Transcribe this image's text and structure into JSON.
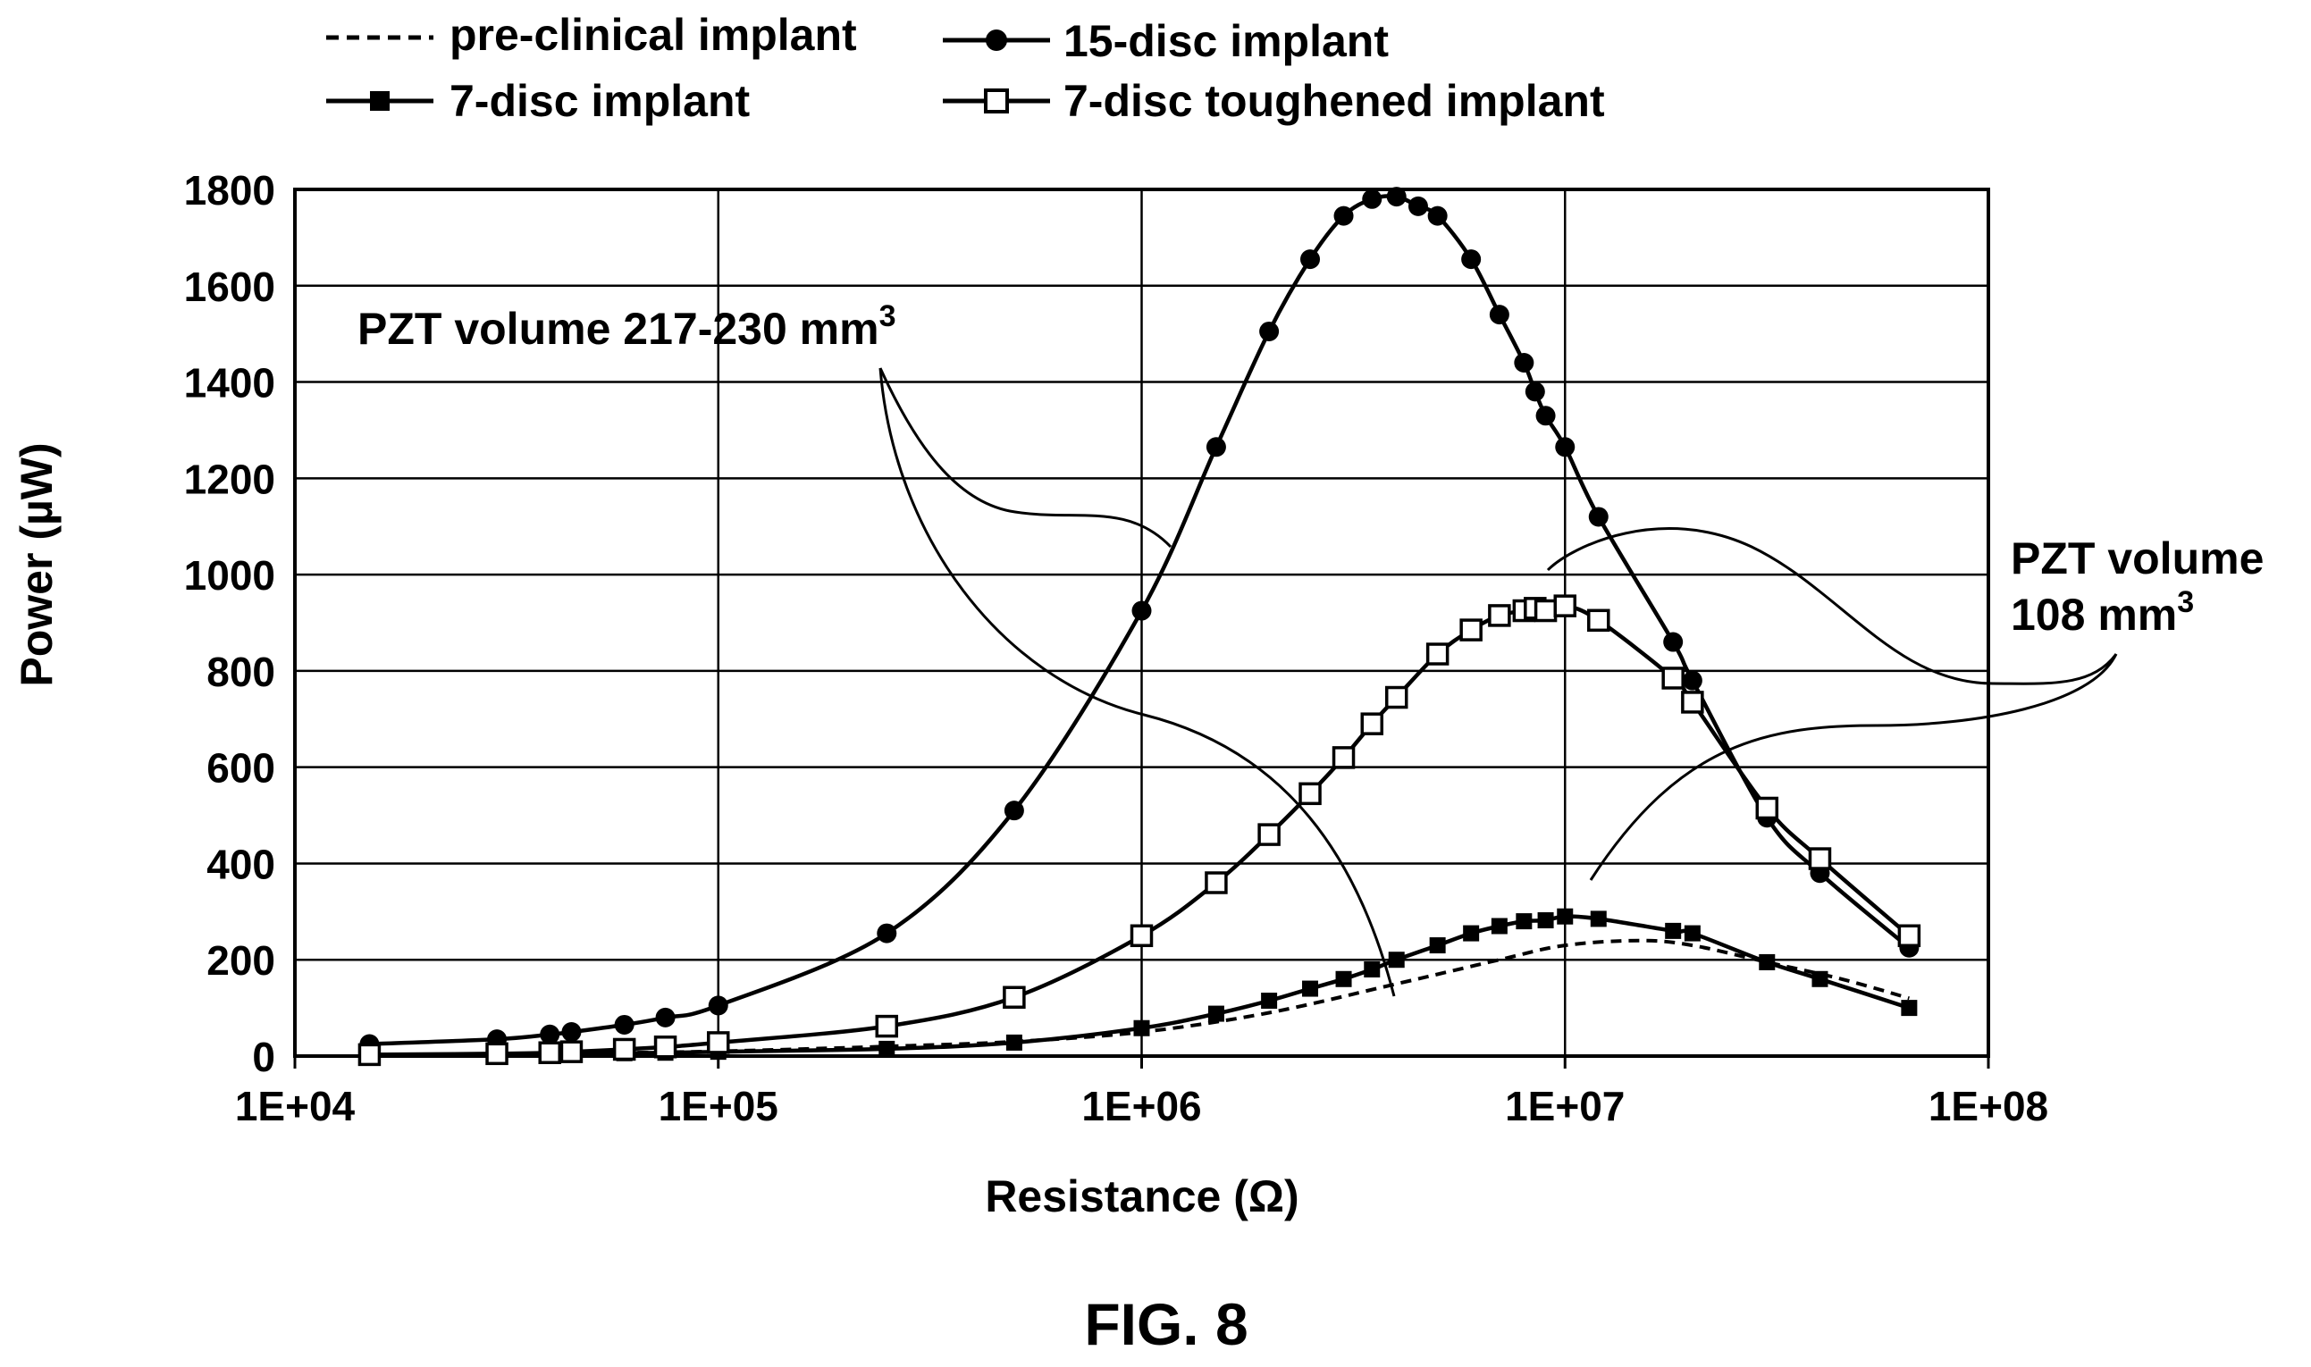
{
  "figure_label": "FIG. 8",
  "chart_data": {
    "type": "line",
    "xlabel": "Resistance (Ω)",
    "ylabel": "Power (µW)",
    "x_scale": "log",
    "xlim": [
      10000,
      100000000
    ],
    "ylim": [
      0,
      1800
    ],
    "x_ticks": [
      10000,
      100000,
      1000000,
      10000000,
      100000000
    ],
    "x_tick_labels": [
      "1E+04",
      "1E+05",
      "1E+06",
      "1E+07",
      "1E+08"
    ],
    "y_ticks": [
      0,
      200,
      400,
      600,
      800,
      1000,
      1200,
      1400,
      1600,
      1800
    ],
    "y_tick_labels": [
      "0",
      "200",
      "400",
      "600",
      "800",
      "1000",
      "1200",
      "1400",
      "1600",
      "1800"
    ],
    "grid": true,
    "legend_position": "top",
    "series": [
      {
        "name": "pre-clinical implant",
        "marker": "none",
        "line": "dashed",
        "x": [
          15000,
          30000,
          50000,
          100000,
          250000,
          500000,
          1000000,
          2000000,
          4000000,
          7000000,
          10000000,
          15000000,
          20000000,
          30000000,
          45000000,
          65000000
        ],
        "y": [
          2,
          4,
          6,
          10,
          20,
          30,
          50,
          90,
          150,
          200,
          230,
          240,
          230,
          195,
          160,
          120
        ]
      },
      {
        "name": "15-disc implant",
        "marker": "filled-circle",
        "line": "solid",
        "x": [
          15000,
          30000,
          40000,
          45000,
          60000,
          75000,
          100000,
          250000,
          500000,
          1000000,
          1500000,
          2000000,
          2500000,
          3000000,
          3500000,
          4000000,
          4500000,
          5000000,
          6000000,
          7000000,
          8000000,
          8500000,
          9000000,
          10000000,
          12000000,
          18000000,
          20000000,
          30000000,
          40000000,
          65000000
        ],
        "y": [
          25,
          35,
          45,
          50,
          65,
          80,
          105,
          255,
          510,
          925,
          1265,
          1505,
          1655,
          1745,
          1780,
          1785,
          1765,
          1745,
          1655,
          1540,
          1440,
          1380,
          1330,
          1265,
          1120,
          860,
          780,
          495,
          380,
          225
        ]
      },
      {
        "name": "7-disc implant",
        "marker": "filled-square",
        "line": "solid",
        "x": [
          15000,
          30000,
          40000,
          45000,
          60000,
          75000,
          100000,
          250000,
          500000,
          1000000,
          1500000,
          2000000,
          2500000,
          3000000,
          3500000,
          4000000,
          5000000,
          6000000,
          7000000,
          8000000,
          9000000,
          10000000,
          12000000,
          18000000,
          20000000,
          30000000,
          40000000,
          65000000
        ],
        "y": [
          2,
          3,
          4,
          5,
          6,
          7,
          9,
          15,
          28,
          58,
          88,
          115,
          140,
          160,
          180,
          200,
          230,
          255,
          270,
          280,
          282,
          290,
          285,
          260,
          255,
          195,
          160,
          100
        ]
      },
      {
        "name": "7-disc toughened implant",
        "marker": "open-square",
        "line": "solid",
        "x": [
          15000,
          30000,
          40000,
          45000,
          60000,
          75000,
          100000,
          250000,
          500000,
          1000000,
          1500000,
          2000000,
          2500000,
          3000000,
          3500000,
          4000000,
          5000000,
          6000000,
          7000000,
          8000000,
          8500000,
          9000000,
          10000000,
          12000000,
          18000000,
          20000000,
          30000000,
          40000000,
          65000000
        ],
        "y": [
          3,
          5,
          7,
          9,
          14,
          19,
          28,
          62,
          122,
          250,
          360,
          460,
          545,
          620,
          690,
          745,
          835,
          885,
          915,
          925,
          930,
          925,
          935,
          905,
          785,
          735,
          515,
          410,
          250
        ]
      }
    ],
    "annotations": [
      {
        "text_main": "PZT volume 217-230 mm",
        "text_sup": "3",
        "target_series": [
          "15-disc implant",
          "pre-clinical implant"
        ],
        "leader_target_x": [
          900000,
          4000000
        ],
        "leader_target_y": [
          1060,
          130
        ]
      },
      {
        "text_line1": "PZT volume",
        "text_line2_main": "108 mm",
        "text_line2_sup": "3",
        "target_series": [
          "7-disc toughened implant",
          "7-disc implant"
        ],
        "leader_target_x": [
          10000000,
          10000000
        ],
        "leader_target_y": [
          950,
          350
        ]
      }
    ]
  }
}
